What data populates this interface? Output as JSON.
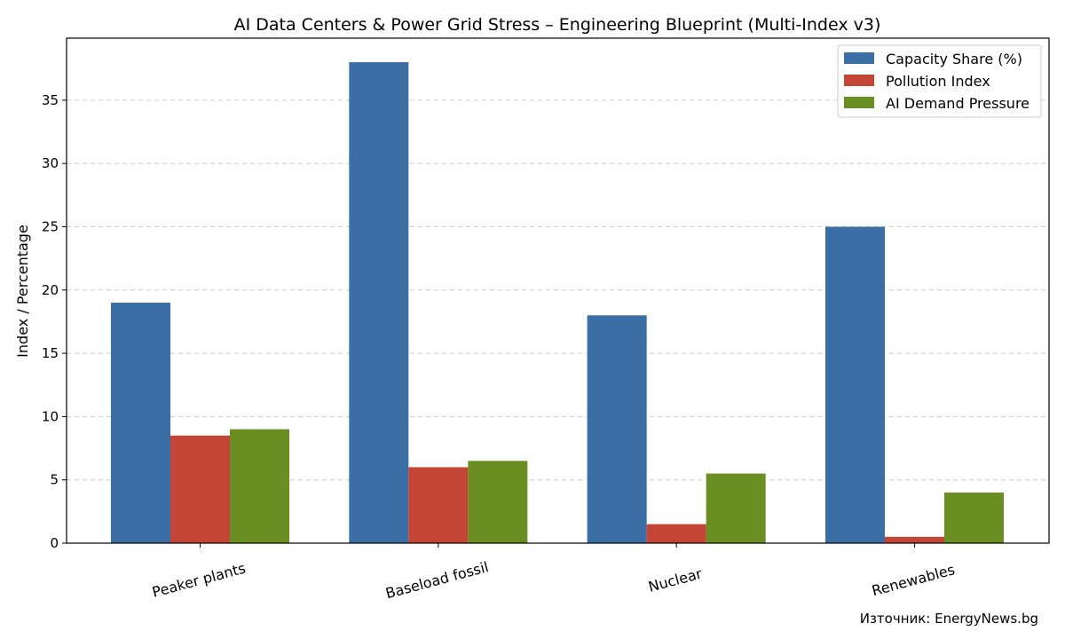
{
  "chart_data": {
    "type": "bar",
    "title": "AI Data Centers & Power Grid Stress – Engineering Blueprint (Multi-Index v3)",
    "xlabel": "",
    "ylabel": "Index / Percentage",
    "categories": [
      "Peaker plants",
      "Baseload fossil",
      "Nuclear",
      "Renewables"
    ],
    "series": [
      {
        "name": "Capacity Share (%)",
        "color": "#3a6ea5",
        "values": [
          19,
          38,
          18,
          25
        ]
      },
      {
        "name": "Pollution Index",
        "color": "#c44536",
        "values": [
          8.5,
          6,
          1.5,
          0.5
        ]
      },
      {
        "name": "AI Demand Pressure",
        "color": "#6b8e23",
        "values": [
          9,
          6.5,
          5.5,
          4
        ]
      }
    ],
    "ylim": [
      0,
      39.9
    ],
    "yticks": [
      0,
      5,
      10,
      15,
      20,
      25,
      30,
      35
    ],
    "grid": "y-dashed",
    "legend": "top-right"
  },
  "source_note": "Източник: EnergyNews.bg"
}
